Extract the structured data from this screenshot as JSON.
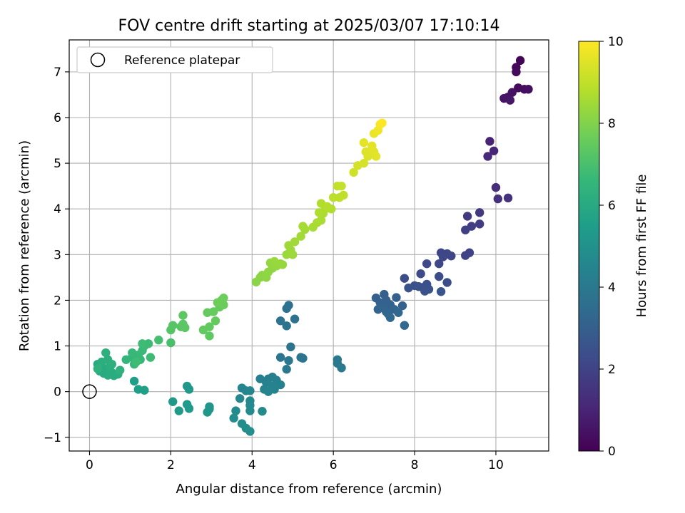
{
  "chart_data": {
    "type": "scatter",
    "title": "FOV centre drift starting at 2025/03/07 17:10:14",
    "xlabel": "Angular distance from reference (arcmin)",
    "ylabel": "Rotation from reference (arcmin)",
    "xlim": [
      -0.5,
      11.3
    ],
    "ylim": [
      -1.3,
      7.7
    ],
    "xticks": [
      0,
      2,
      4,
      6,
      8,
      10
    ],
    "yticks": [
      -1,
      0,
      1,
      2,
      3,
      4,
      5,
      6,
      7
    ],
    "xtick_labels": [
      "0",
      "2",
      "4",
      "6",
      "8",
      "10"
    ],
    "ytick_labels": [
      "−1",
      "0",
      "1",
      "2",
      "3",
      "4",
      "5",
      "6",
      "7"
    ],
    "grid": true,
    "legend": {
      "placement": "top-left",
      "entries": [
        {
          "label": "Reference platepar",
          "marker": "open-circle"
        }
      ]
    },
    "reference_point": {
      "x": 0,
      "y": 0
    },
    "colorbar": {
      "label": "Hours from first FF file",
      "min": 0,
      "max": 10,
      "ticks": [
        0,
        2,
        4,
        6,
        8,
        10
      ],
      "tick_labels": [
        "0",
        "2",
        "4",
        "6",
        "8",
        "10"
      ],
      "colormap": "viridis",
      "stops": [
        "#440154",
        "#482878",
        "#3e4989",
        "#31688e",
        "#26828e",
        "#1f9e89",
        "#35b779",
        "#6ece58",
        "#b5de2b",
        "#fde725"
      ]
    },
    "points": [
      {
        "x": 10.6,
        "y": 7.25,
        "t": 0.1
      },
      {
        "x": 10.5,
        "y": 7.1,
        "t": 0.2
      },
      {
        "x": 10.5,
        "y": 7.0,
        "t": 0.25
      },
      {
        "x": 10.55,
        "y": 6.65,
        "t": 0.3
      },
      {
        "x": 10.7,
        "y": 6.62,
        "t": 0.35
      },
      {
        "x": 10.8,
        "y": 6.62,
        "t": 0.4
      },
      {
        "x": 10.4,
        "y": 6.55,
        "t": 0.45
      },
      {
        "x": 10.3,
        "y": 6.45,
        "t": 0.5
      },
      {
        "x": 10.2,
        "y": 6.42,
        "t": 0.55
      },
      {
        "x": 10.35,
        "y": 6.38,
        "t": 0.6
      },
      {
        "x": 9.85,
        "y": 5.48,
        "t": 1.0
      },
      {
        "x": 9.95,
        "y": 5.27,
        "t": 1.05
      },
      {
        "x": 9.8,
        "y": 5.15,
        "t": 1.1
      },
      {
        "x": 10.0,
        "y": 4.47,
        "t": 1.3
      },
      {
        "x": 10.05,
        "y": 4.22,
        "t": 1.4
      },
      {
        "x": 10.3,
        "y": 4.24,
        "t": 1.45
      },
      {
        "x": 9.6,
        "y": 3.92,
        "t": 1.7
      },
      {
        "x": 9.3,
        "y": 3.84,
        "t": 1.75
      },
      {
        "x": 9.6,
        "y": 3.67,
        "t": 1.8
      },
      {
        "x": 9.4,
        "y": 3.62,
        "t": 1.85
      },
      {
        "x": 9.25,
        "y": 3.54,
        "t": 1.9
      },
      {
        "x": 9.35,
        "y": 3.04,
        "t": 2.0
      },
      {
        "x": 9.25,
        "y": 2.98,
        "t": 2.05
      },
      {
        "x": 8.65,
        "y": 3.04,
        "t": 2.1
      },
      {
        "x": 8.8,
        "y": 3.02,
        "t": 2.12
      },
      {
        "x": 8.9,
        "y": 2.97,
        "t": 2.15
      },
      {
        "x": 8.7,
        "y": 2.95,
        "t": 2.18
      },
      {
        "x": 8.6,
        "y": 2.8,
        "t": 2.2
      },
      {
        "x": 8.3,
        "y": 2.8,
        "t": 2.25
      },
      {
        "x": 8.15,
        "y": 2.58,
        "t": 2.3
      },
      {
        "x": 8.6,
        "y": 2.52,
        "t": 2.35
      },
      {
        "x": 7.75,
        "y": 2.48,
        "t": 2.38
      },
      {
        "x": 8.8,
        "y": 2.39,
        "t": 2.4
      },
      {
        "x": 8.3,
        "y": 2.35,
        "t": 2.45
      },
      {
        "x": 8.0,
        "y": 2.32,
        "t": 2.48
      },
      {
        "x": 8.1,
        "y": 2.3,
        "t": 2.5
      },
      {
        "x": 8.2,
        "y": 2.28,
        "t": 2.52
      },
      {
        "x": 7.85,
        "y": 2.27,
        "t": 2.55
      },
      {
        "x": 8.35,
        "y": 2.24,
        "t": 2.58
      },
      {
        "x": 8.25,
        "y": 2.2,
        "t": 2.6
      },
      {
        "x": 8.65,
        "y": 2.19,
        "t": 2.65
      },
      {
        "x": 7.05,
        "y": 2.05,
        "t": 3.0
      },
      {
        "x": 7.25,
        "y": 2.13,
        "t": 3.02
      },
      {
        "x": 7.55,
        "y": 2.06,
        "t": 3.05
      },
      {
        "x": 7.3,
        "y": 2.0,
        "t": 3.08
      },
      {
        "x": 7.15,
        "y": 1.95,
        "t": 3.1
      },
      {
        "x": 7.4,
        "y": 1.9,
        "t": 3.12
      },
      {
        "x": 7.7,
        "y": 1.88,
        "t": 3.15
      },
      {
        "x": 7.2,
        "y": 1.85,
        "t": 3.18
      },
      {
        "x": 7.1,
        "y": 1.8,
        "t": 3.2
      },
      {
        "x": 7.5,
        "y": 1.8,
        "t": 3.22
      },
      {
        "x": 7.3,
        "y": 1.75,
        "t": 3.25
      },
      {
        "x": 7.6,
        "y": 1.73,
        "t": 3.28
      },
      {
        "x": 7.35,
        "y": 1.7,
        "t": 3.3
      },
      {
        "x": 7.4,
        "y": 1.62,
        "t": 3.32
      },
      {
        "x": 7.75,
        "y": 1.45,
        "t": 3.35
      },
      {
        "x": 4.9,
        "y": 1.89,
        "t": 3.7
      },
      {
        "x": 4.85,
        "y": 1.82,
        "t": 3.72
      },
      {
        "x": 5.05,
        "y": 1.59,
        "t": 3.75
      },
      {
        "x": 4.7,
        "y": 1.55,
        "t": 3.78
      },
      {
        "x": 4.85,
        "y": 1.44,
        "t": 3.8
      },
      {
        "x": 4.95,
        "y": 0.98,
        "t": 3.85
      },
      {
        "x": 4.7,
        "y": 0.75,
        "t": 3.9
      },
      {
        "x": 5.2,
        "y": 0.75,
        "t": 3.92
      },
      {
        "x": 5.25,
        "y": 0.73,
        "t": 3.95
      },
      {
        "x": 4.9,
        "y": 0.68,
        "t": 3.98
      },
      {
        "x": 6.1,
        "y": 0.7,
        "t": 4.0
      },
      {
        "x": 6.1,
        "y": 0.62,
        "t": 4.02
      },
      {
        "x": 6.2,
        "y": 0.52,
        "t": 4.05
      },
      {
        "x": 4.85,
        "y": 0.49,
        "t": 4.08
      },
      {
        "x": 4.5,
        "y": 0.32,
        "t": 4.3
      },
      {
        "x": 4.4,
        "y": 0.28,
        "t": 4.32
      },
      {
        "x": 4.2,
        "y": 0.28,
        "t": 4.35
      },
      {
        "x": 4.6,
        "y": 0.25,
        "t": 4.38
      },
      {
        "x": 4.35,
        "y": 0.2,
        "t": 4.4
      },
      {
        "x": 4.7,
        "y": 0.15,
        "t": 4.42
      },
      {
        "x": 4.5,
        "y": 0.12,
        "t": 4.45
      },
      {
        "x": 4.3,
        "y": 0.05,
        "t": 4.48
      },
      {
        "x": 4.55,
        "y": 0.05,
        "t": 4.5
      },
      {
        "x": 4.4,
        "y": 0.0,
        "t": 4.52
      },
      {
        "x": 3.75,
        "y": 0.08,
        "t": 4.55
      },
      {
        "x": 3.85,
        "y": 0.02,
        "t": 4.58
      },
      {
        "x": 3.95,
        "y": 0.02,
        "t": 4.6
      },
      {
        "x": 3.7,
        "y": -0.15,
        "t": 4.7
      },
      {
        "x": 3.95,
        "y": -0.2,
        "t": 4.72
      },
      {
        "x": 3.95,
        "y": -0.3,
        "t": 4.75
      },
      {
        "x": 4.25,
        "y": -0.43,
        "t": 4.78
      },
      {
        "x": 3.6,
        "y": -0.42,
        "t": 4.8
      },
      {
        "x": 3.95,
        "y": -0.42,
        "t": 4.82
      },
      {
        "x": 3.55,
        "y": -0.58,
        "t": 4.85
      },
      {
        "x": 3.75,
        "y": -0.7,
        "t": 4.88
      },
      {
        "x": 3.85,
        "y": -0.8,
        "t": 4.9
      },
      {
        "x": 3.95,
        "y": -0.87,
        "t": 4.92
      },
      {
        "x": 2.95,
        "y": -0.33,
        "t": 5.2
      },
      {
        "x": 2.95,
        "y": -0.38,
        "t": 5.22
      },
      {
        "x": 2.9,
        "y": -0.45,
        "t": 5.25
      },
      {
        "x": 2.4,
        "y": 0.12,
        "t": 5.3
      },
      {
        "x": 2.45,
        "y": 0.05,
        "t": 5.32
      },
      {
        "x": 2.05,
        "y": -0.22,
        "t": 5.35
      },
      {
        "x": 2.4,
        "y": -0.28,
        "t": 5.38
      },
      {
        "x": 2.45,
        "y": -0.37,
        "t": 5.4
      },
      {
        "x": 2.2,
        "y": -0.42,
        "t": 5.42
      },
      {
        "x": 1.1,
        "y": 0.23,
        "t": 5.6
      },
      {
        "x": 1.2,
        "y": 0.05,
        "t": 5.62
      },
      {
        "x": 1.35,
        "y": 0.03,
        "t": 5.65
      },
      {
        "x": 0.2,
        "y": 0.6,
        "t": 6.0
      },
      {
        "x": 0.3,
        "y": 0.55,
        "t": 6.02
      },
      {
        "x": 0.4,
        "y": 0.5,
        "t": 6.05
      },
      {
        "x": 0.25,
        "y": 0.45,
        "t": 6.08
      },
      {
        "x": 0.35,
        "y": 0.4,
        "t": 6.1
      },
      {
        "x": 0.45,
        "y": 0.36,
        "t": 6.12
      },
      {
        "x": 0.6,
        "y": 0.35,
        "t": 6.15
      },
      {
        "x": 0.55,
        "y": 0.42,
        "t": 6.18
      },
      {
        "x": 0.7,
        "y": 0.38,
        "t": 6.2
      },
      {
        "x": 0.5,
        "y": 0.55,
        "t": 6.22
      },
      {
        "x": 0.3,
        "y": 0.65,
        "t": 6.25
      },
      {
        "x": 0.45,
        "y": 0.7,
        "t": 6.28
      },
      {
        "x": 0.4,
        "y": 0.85,
        "t": 6.3
      },
      {
        "x": 0.55,
        "y": 0.6,
        "t": 6.32
      },
      {
        "x": 0.75,
        "y": 0.47,
        "t": 6.35
      },
      {
        "x": 0.2,
        "y": 0.5,
        "t": 6.38
      },
      {
        "x": 0.9,
        "y": 0.7,
        "t": 6.6
      },
      {
        "x": 1.05,
        "y": 0.75,
        "t": 6.62
      },
      {
        "x": 1.1,
        "y": 0.6,
        "t": 6.65
      },
      {
        "x": 1.25,
        "y": 0.7,
        "t": 6.68
      },
      {
        "x": 1.05,
        "y": 0.85,
        "t": 6.7
      },
      {
        "x": 1.2,
        "y": 0.8,
        "t": 6.72
      },
      {
        "x": 1.3,
        "y": 0.9,
        "t": 6.75
      },
      {
        "x": 1.35,
        "y": 1.0,
        "t": 6.78
      },
      {
        "x": 1.45,
        "y": 1.05,
        "t": 6.8
      },
      {
        "x": 1.5,
        "y": 0.75,
        "t": 6.82
      },
      {
        "x": 1.3,
        "y": 1.05,
        "t": 6.85
      },
      {
        "x": 1.15,
        "y": 0.65,
        "t": 6.88
      },
      {
        "x": 1.7,
        "y": 1.13,
        "t": 7.0
      },
      {
        "x": 2.0,
        "y": 1.07,
        "t": 7.05
      },
      {
        "x": 2.0,
        "y": 1.35,
        "t": 7.3
      },
      {
        "x": 2.05,
        "y": 1.45,
        "t": 7.32
      },
      {
        "x": 2.25,
        "y": 1.42,
        "t": 7.35
      },
      {
        "x": 2.3,
        "y": 1.48,
        "t": 7.38
      },
      {
        "x": 2.35,
        "y": 1.4,
        "t": 7.4
      },
      {
        "x": 2.3,
        "y": 1.67,
        "t": 7.42
      },
      {
        "x": 2.95,
        "y": 1.22,
        "t": 7.5
      },
      {
        "x": 2.8,
        "y": 1.35,
        "t": 7.52
      },
      {
        "x": 2.95,
        "y": 1.42,
        "t": 7.55
      },
      {
        "x": 3.1,
        "y": 1.55,
        "t": 7.58
      },
      {
        "x": 2.9,
        "y": 1.73,
        "t": 7.6
      },
      {
        "x": 3.05,
        "y": 1.75,
        "t": 7.62
      },
      {
        "x": 3.2,
        "y": 1.85,
        "t": 7.65
      },
      {
        "x": 3.3,
        "y": 1.9,
        "t": 7.68
      },
      {
        "x": 3.25,
        "y": 2.0,
        "t": 7.7
      },
      {
        "x": 3.3,
        "y": 2.05,
        "t": 7.72
      },
      {
        "x": 3.15,
        "y": 1.95,
        "t": 7.75
      },
      {
        "x": 4.1,
        "y": 2.4,
        "t": 8.2
      },
      {
        "x": 4.2,
        "y": 2.5,
        "t": 8.22
      },
      {
        "x": 4.25,
        "y": 2.55,
        "t": 8.25
      },
      {
        "x": 4.35,
        "y": 2.5,
        "t": 8.28
      },
      {
        "x": 4.4,
        "y": 2.62,
        "t": 8.3
      },
      {
        "x": 4.5,
        "y": 2.7,
        "t": 8.32
      },
      {
        "x": 4.45,
        "y": 2.82,
        "t": 8.35
      },
      {
        "x": 4.6,
        "y": 2.75,
        "t": 8.38
      },
      {
        "x": 4.7,
        "y": 2.8,
        "t": 8.4
      },
      {
        "x": 4.75,
        "y": 2.78,
        "t": 8.42
      },
      {
        "x": 4.55,
        "y": 2.85,
        "t": 8.45
      },
      {
        "x": 4.85,
        "y": 3.0,
        "t": 8.48
      },
      {
        "x": 4.95,
        "y": 3.1,
        "t": 8.5
      },
      {
        "x": 5.0,
        "y": 3.0,
        "t": 8.52
      },
      {
        "x": 4.9,
        "y": 3.2,
        "t": 8.55
      },
      {
        "x": 5.05,
        "y": 3.28,
        "t": 8.58
      },
      {
        "x": 5.2,
        "y": 3.4,
        "t": 8.6
      },
      {
        "x": 5.3,
        "y": 3.55,
        "t": 8.62
      },
      {
        "x": 5.25,
        "y": 3.62,
        "t": 8.65
      },
      {
        "x": 5.5,
        "y": 3.6,
        "t": 8.68
      },
      {
        "x": 5.6,
        "y": 3.7,
        "t": 8.7
      },
      {
        "x": 5.7,
        "y": 3.75,
        "t": 8.72
      },
      {
        "x": 5.75,
        "y": 3.9,
        "t": 8.75
      },
      {
        "x": 5.65,
        "y": 3.92,
        "t": 8.78
      },
      {
        "x": 5.8,
        "y": 4.0,
        "t": 8.8
      },
      {
        "x": 5.7,
        "y": 4.12,
        "t": 8.82
      },
      {
        "x": 5.95,
        "y": 4.0,
        "t": 8.85
      },
      {
        "x": 5.85,
        "y": 4.05,
        "t": 8.88
      },
      {
        "x": 6.0,
        "y": 4.25,
        "t": 9.0
      },
      {
        "x": 6.15,
        "y": 4.25,
        "t": 9.02
      },
      {
        "x": 6.25,
        "y": 4.3,
        "t": 9.05
      },
      {
        "x": 6.1,
        "y": 4.5,
        "t": 9.08
      },
      {
        "x": 6.2,
        "y": 4.5,
        "t": 9.1
      },
      {
        "x": 6.5,
        "y": 4.8,
        "t": 9.3
      },
      {
        "x": 6.6,
        "y": 4.95,
        "t": 9.35
      },
      {
        "x": 6.75,
        "y": 5.0,
        "t": 9.4
      },
      {
        "x": 6.85,
        "y": 5.15,
        "t": 9.45
      },
      {
        "x": 6.8,
        "y": 5.25,
        "t": 9.5
      },
      {
        "x": 6.9,
        "y": 5.2,
        "t": 9.52
      },
      {
        "x": 7.0,
        "y": 5.25,
        "t": 9.55
      },
      {
        "x": 7.05,
        "y": 5.15,
        "t": 9.58
      },
      {
        "x": 6.75,
        "y": 5.45,
        "t": 9.6
      },
      {
        "x": 6.95,
        "y": 5.38,
        "t": 9.62
      },
      {
        "x": 7.0,
        "y": 5.65,
        "t": 9.7
      },
      {
        "x": 7.1,
        "y": 5.72,
        "t": 9.8
      },
      {
        "x": 7.15,
        "y": 5.85,
        "t": 9.9
      },
      {
        "x": 7.2,
        "y": 5.88,
        "t": 10.0
      }
    ]
  }
}
